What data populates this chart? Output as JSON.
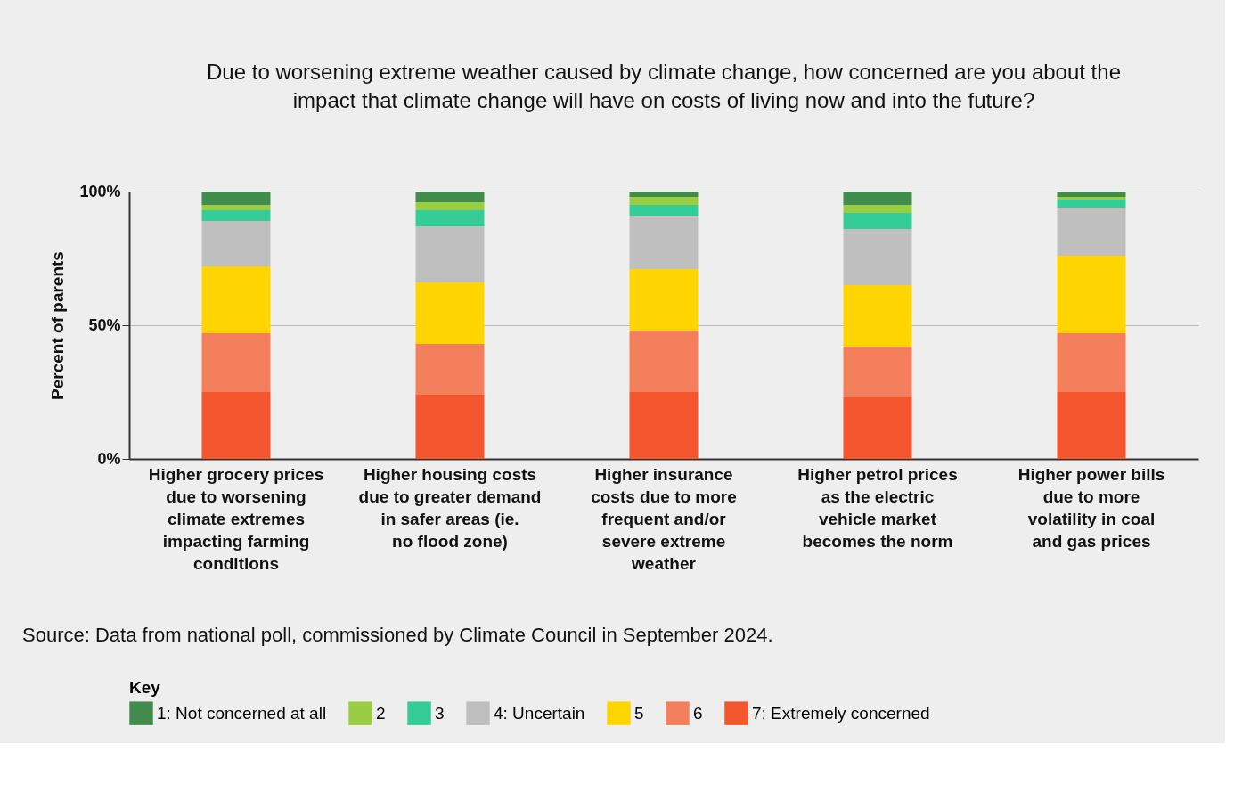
{
  "chart_data": {
    "type": "bar",
    "stacked": true,
    "title": "Due to worsening extreme weather caused by climate change, how concerned are you about the impact that climate change will have on costs of living now and into the future?",
    "ylabel": "Percent of parents",
    "legend_title": "Key",
    "categories": [
      "Higher grocery prices due to worsening climate extremes impacting farming conditions",
      "Higher housing costs due to greater demand in safer areas (ie. no flood zone)",
      "Higher insurance costs due to more frequent and/or severe extreme weather",
      "Higher petrol prices as the electric vehicle market becomes the norm",
      "Higher power bills due to more volatility in coal and gas prices"
    ],
    "series": [
      {
        "name": "7: Extremely concerned",
        "color": "#f4572d",
        "values": [
          25,
          24,
          25,
          23,
          25
        ]
      },
      {
        "name": "6",
        "color": "#f37f5c",
        "values": [
          22,
          19,
          23,
          19,
          22
        ]
      },
      {
        "name": "5",
        "color": "#ffd500",
        "values": [
          25,
          23,
          23,
          23,
          29
        ]
      },
      {
        "name": "4: Uncertain",
        "color": "#bfbfbf",
        "values": [
          17,
          21,
          20,
          21,
          18
        ]
      },
      {
        "name": "3",
        "color": "#34cc97",
        "values": [
          4,
          6,
          4,
          6,
          3
        ]
      },
      {
        "name": "2",
        "color": "#9acd41",
        "values": [
          2,
          3,
          3,
          3,
          1
        ]
      },
      {
        "name": "1: Not concerned at all",
        "color": "#418c4d",
        "values": [
          5,
          4,
          2,
          5,
          2
        ]
      }
    ],
    "ylim": [
      0,
      100
    ],
    "yticks": [
      {
        "value": 0,
        "label": "0%"
      },
      {
        "value": 50,
        "label": "50%"
      },
      {
        "value": 100,
        "label": "100%"
      }
    ],
    "grid": "y",
    "legend": "bottom",
    "annotations": [
      "Source: Data from national poll, commissioned by Climate Council in September 2024."
    ]
  }
}
